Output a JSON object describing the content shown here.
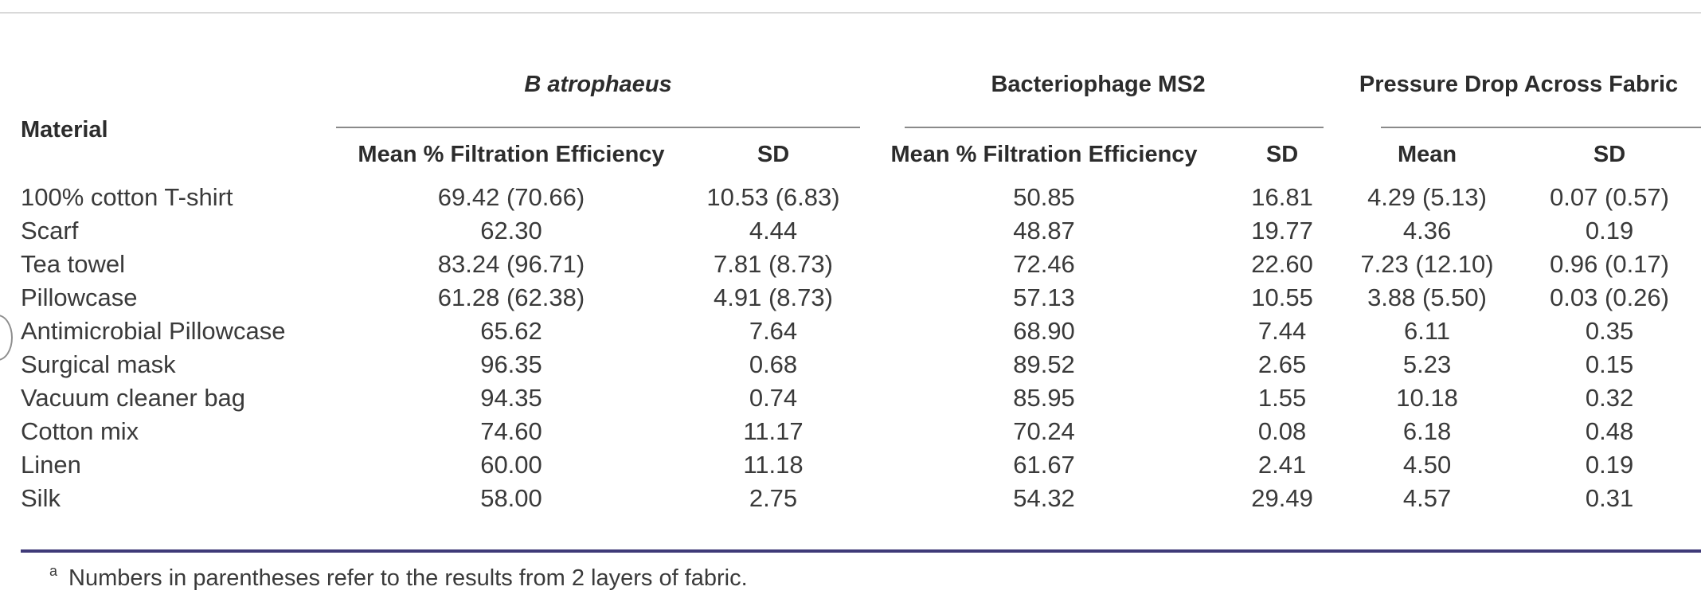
{
  "table": {
    "material_header": "Material",
    "groups": {
      "b_atrophaeus": "B atrophaeus",
      "ms2": "Bacteriophage MS2",
      "pressure": "Pressure Drop Across Fabric"
    },
    "subheaders": {
      "b_mean": "Mean % Filtration Efficiency",
      "b_sd": "SD",
      "ms2_mean": "Mean % Filtration Efficiency",
      "ms2_sd": "SD",
      "p_mean": "Mean",
      "p_sd": "SD"
    },
    "rows": [
      [
        "100% cotton T-shirt",
        "69.42 (70.66)",
        "10.53 (6.83)",
        "50.85",
        "16.81",
        "4.29 (5.13)",
        "0.07 (0.57)"
      ],
      [
        "Scarf",
        "62.30",
        "4.44",
        "48.87",
        "19.77",
        "4.36",
        "0.19"
      ],
      [
        "Tea towel",
        "83.24 (96.71)",
        "7.81 (8.73)",
        "72.46",
        "22.60",
        "7.23 (12.10)",
        "0.96 (0.17)"
      ],
      [
        "Pillowcase",
        "61.28 (62.38)",
        "4.91 (8.73)",
        "57.13",
        "10.55",
        "3.88 (5.50)",
        "0.03 (0.26)"
      ],
      [
        "Antimicrobial Pillowcase",
        "65.62",
        "7.64",
        "68.90",
        "7.44",
        "6.11",
        "0.35"
      ],
      [
        "Surgical mask",
        "96.35",
        "0.68",
        "89.52",
        "2.65",
        "5.23",
        "0.15"
      ],
      [
        "Vacuum cleaner bag",
        "94.35",
        "0.74",
        "85.95",
        "1.55",
        "10.18",
        "0.32"
      ],
      [
        "Cotton mix",
        "74.60",
        "11.17",
        "70.24",
        "0.08",
        "6.18",
        "0.48"
      ],
      [
        "Linen",
        "60.00",
        "11.18",
        "61.67",
        "2.41",
        "4.50",
        "0.19"
      ],
      [
        "Silk",
        "58.00",
        "2.75",
        "54.32",
        "29.49",
        "4.57",
        "0.31"
      ]
    ]
  },
  "footnote": {
    "marker": "a",
    "text": "Numbers in parentheses refer to the results from 2 layers of fabric."
  }
}
